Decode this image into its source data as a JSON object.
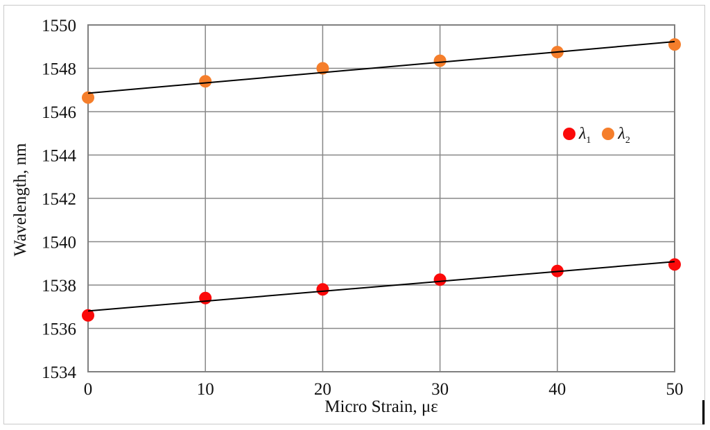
{
  "figure": {
    "background": "#ffffff",
    "frame_color": "#c9c9c9"
  },
  "chart_data": {
    "type": "scatter",
    "title": "",
    "xlabel": "Micro Strain, με",
    "ylabel": "Wavelength, nm",
    "x": [
      0,
      10,
      20,
      30,
      40,
      50
    ],
    "xlim": [
      0,
      50
    ],
    "ylim": [
      1534,
      1550
    ],
    "xticks": [
      0,
      10,
      20,
      30,
      40,
      50
    ],
    "yticks": [
      1534,
      1536,
      1538,
      1540,
      1542,
      1544,
      1546,
      1548,
      1550
    ],
    "grid": true,
    "gridline_color": "#878787",
    "axis_border_color": "#7f7f7f",
    "trendline_color": "#000000",
    "marker_radius": 9,
    "legend_position": "inside-right",
    "series": [
      {
        "name": "λ1",
        "legend_base": "λ",
        "legend_sub": "1",
        "color": "#fb0a0a",
        "values": [
          1536.6,
          1537.4,
          1537.8,
          1538.25,
          1538.65,
          1538.95
        ],
        "trendline": "linear"
      },
      {
        "name": "λ2",
        "legend_base": "λ",
        "legend_sub": "2",
        "color": "#f57e2b",
        "values": [
          1546.65,
          1547.4,
          1548.0,
          1548.35,
          1548.75,
          1549.1
        ],
        "trendline": "linear"
      }
    ]
  }
}
